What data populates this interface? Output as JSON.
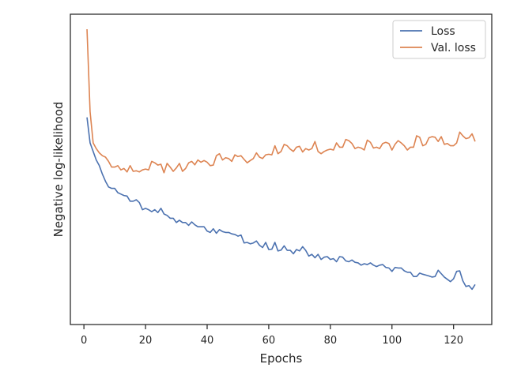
{
  "chart_data": {
    "type": "line",
    "xlabel": "Epochs",
    "ylabel": "Negative log-likelihood",
    "xlim": [
      -4.4,
      132.4
    ],
    "ylim": [
      0,
      1
    ],
    "x_ticks": [
      0,
      20,
      40,
      60,
      80,
      100,
      120
    ],
    "y_ticks_visible": false,
    "grid": false,
    "legend_position": "top-right",
    "series": [
      {
        "name": "Loss",
        "color": "#4c72b0",
        "x_start": 1,
        "values": [
          0.69,
          0.6,
          0.57,
          0.54,
          0.52,
          0.49,
          0.465,
          0.445,
          0.44,
          0.44,
          0.425,
          0.42,
          0.415,
          0.413,
          0.395,
          0.395,
          0.4,
          0.39,
          0.365,
          0.37,
          0.365,
          0.358,
          0.365,
          0.355,
          0.37,
          0.35,
          0.345,
          0.335,
          0.335,
          0.32,
          0.328,
          0.32,
          0.32,
          0.31,
          0.322,
          0.312,
          0.305,
          0.305,
          0.305,
          0.29,
          0.285,
          0.298,
          0.282,
          0.295,
          0.288,
          0.285,
          0.285,
          0.28,
          0.278,
          0.272,
          0.276,
          0.248,
          0.25,
          0.245,
          0.248,
          0.255,
          0.24,
          0.232,
          0.25,
          0.225,
          0.226,
          0.25,
          0.22,
          0.223,
          0.238,
          0.222,
          0.222,
          0.21,
          0.225,
          0.22,
          0.235,
          0.222,
          0.202,
          0.208,
          0.196,
          0.208,
          0.19,
          0.198,
          0.2,
          0.19,
          0.193,
          0.182,
          0.2,
          0.198,
          0.185,
          0.182,
          0.188,
          0.18,
          0.178,
          0.17,
          0.175,
          0.172,
          0.178,
          0.17,
          0.165,
          0.17,
          0.172,
          0.162,
          0.16,
          0.148,
          0.162,
          0.16,
          0.16,
          0.15,
          0.145,
          0.145,
          0.13,
          0.13,
          0.142,
          0.138,
          0.135,
          0.132,
          0.128,
          0.13,
          0.152,
          0.14,
          0.128,
          0.12,
          0.112,
          0.122,
          0.148,
          0.15,
          0.115,
          0.095,
          0.098,
          0.085,
          0.102
        ]
      },
      {
        "name": "Val. loss",
        "color": "#dd8452",
        "x_start": 1,
        "values": [
          1.0,
          0.71,
          0.6,
          0.58,
          0.565,
          0.555,
          0.55,
          0.535,
          0.515,
          0.515,
          0.52,
          0.505,
          0.51,
          0.498,
          0.52,
          0.5,
          0.502,
          0.498,
          0.505,
          0.508,
          0.505,
          0.535,
          0.53,
          0.522,
          0.525,
          0.495,
          0.528,
          0.515,
          0.5,
          0.512,
          0.528,
          0.5,
          0.51,
          0.53,
          0.535,
          0.523,
          0.54,
          0.532,
          0.538,
          0.532,
          0.52,
          0.522,
          0.555,
          0.562,
          0.54,
          0.548,
          0.545,
          0.535,
          0.558,
          0.552,
          0.555,
          0.542,
          0.53,
          0.538,
          0.545,
          0.565,
          0.55,
          0.545,
          0.558,
          0.56,
          0.558,
          0.59,
          0.562,
          0.57,
          0.595,
          0.59,
          0.578,
          0.57,
          0.585,
          0.588,
          0.568,
          0.58,
          0.575,
          0.58,
          0.605,
          0.57,
          0.562,
          0.57,
          0.575,
          0.578,
          0.575,
          0.6,
          0.585,
          0.585,
          0.612,
          0.608,
          0.598,
          0.58,
          0.585,
          0.582,
          0.575,
          0.61,
          0.602,
          0.582,
          0.585,
          0.58,
          0.598,
          0.602,
          0.598,
          0.575,
          0.595,
          0.608,
          0.6,
          0.59,
          0.575,
          0.585,
          0.585,
          0.625,
          0.62,
          0.59,
          0.595,
          0.618,
          0.622,
          0.62,
          0.605,
          0.622,
          0.595,
          0.598,
          0.59,
          0.59,
          0.6,
          0.638,
          0.625,
          0.615,
          0.618,
          0.632,
          0.605
        ]
      }
    ]
  }
}
